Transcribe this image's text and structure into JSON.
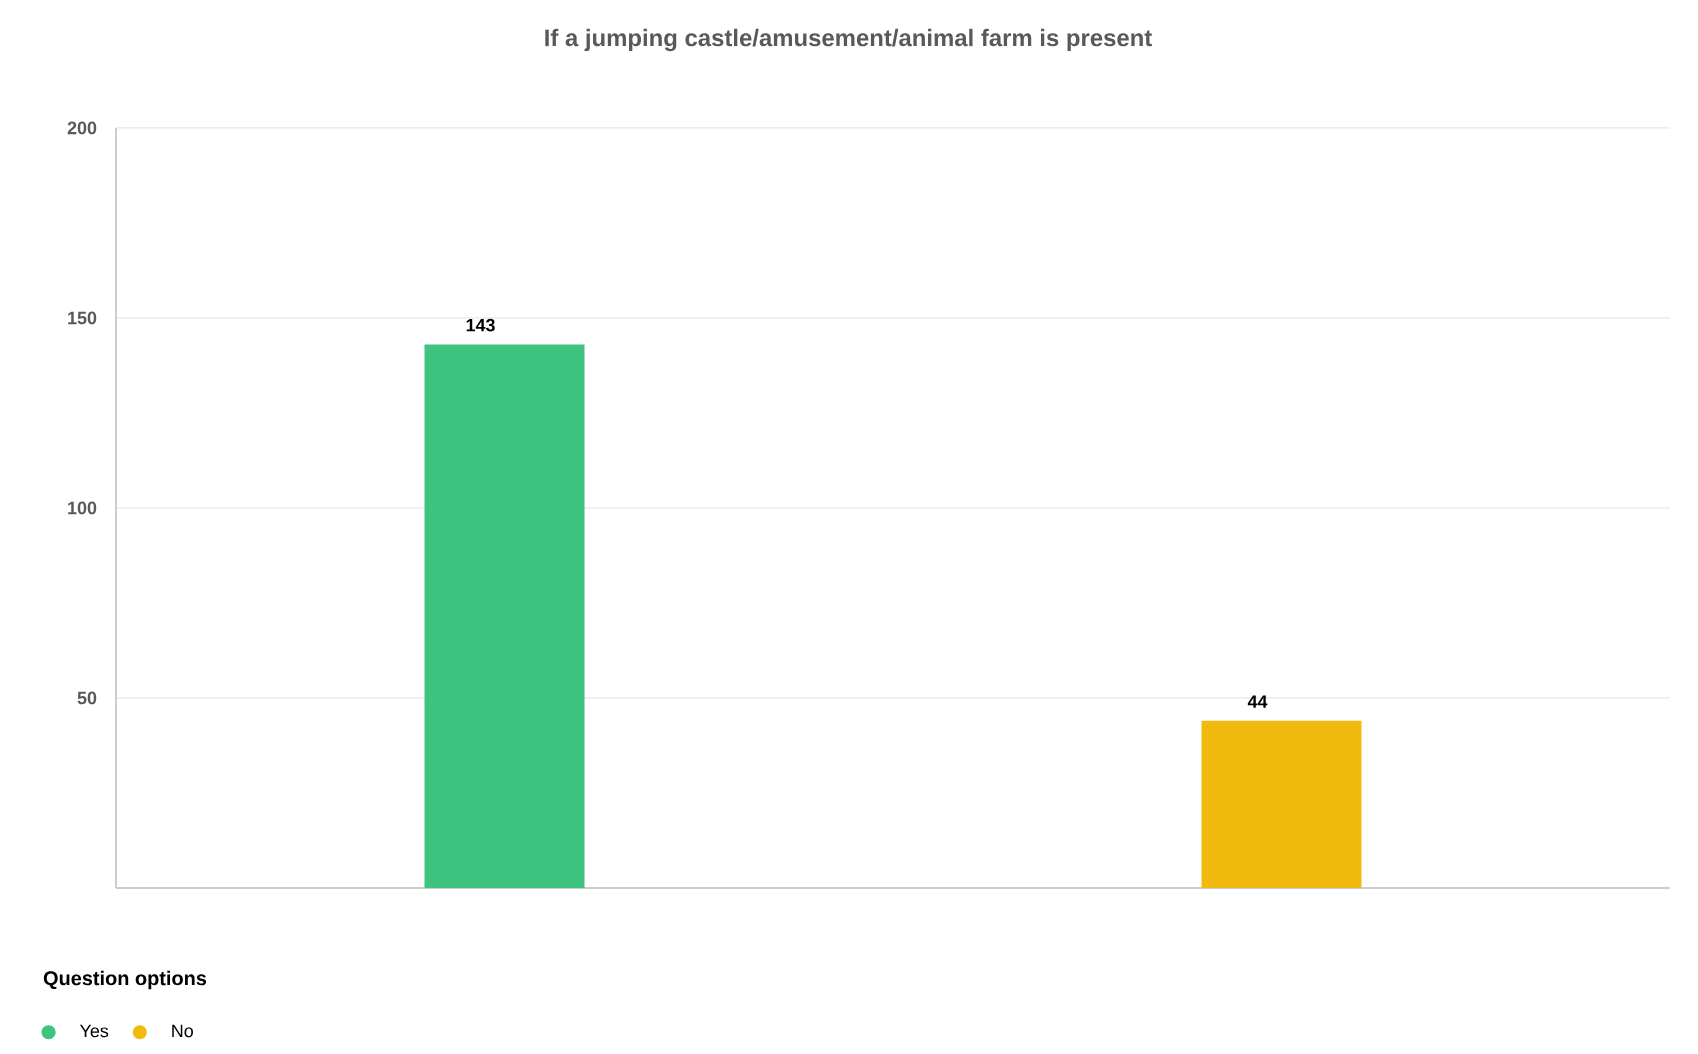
{
  "chart_data": {
    "type": "bar",
    "title": "If a jumping castle/amusement/animal farm is present",
    "categories": [
      null,
      null
    ],
    "series": [
      {
        "name": "Yes",
        "color": "#3ec47e",
        "values": [
          143,
          null
        ]
      },
      {
        "name": "No",
        "color": "#f2b90f",
        "values": [
          null,
          44
        ]
      }
    ],
    "ylim": [
      0,
      200
    ],
    "yticks": [
      50,
      100,
      150,
      200
    ],
    "grid": "y",
    "data_labels": true,
    "legend": "bottom left",
    "legend_title": "Question options"
  }
}
